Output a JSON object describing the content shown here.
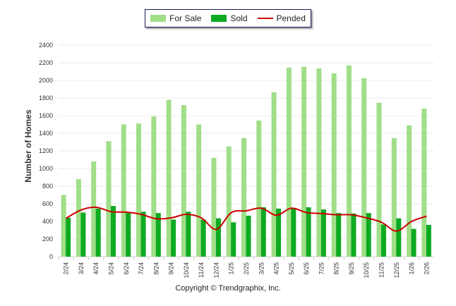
{
  "chart_data": {
    "type": "bar",
    "ylabel": "Number of Homes",
    "ylim": [
      0,
      2400
    ],
    "yticks": [
      0,
      200,
      400,
      600,
      800,
      1000,
      1200,
      1400,
      1600,
      1800,
      2000,
      2200,
      2400
    ],
    "grid": true,
    "legend_position": "top-center",
    "categories": [
      "2/24",
      "3/24",
      "4/24",
      "5/24",
      "6/24",
      "7/24",
      "8/24",
      "9/24",
      "10/24",
      "11/24",
      "12/24",
      "1/25",
      "2/25",
      "3/25",
      "4/25",
      "5/25",
      "6/25",
      "7/25",
      "8/25",
      "9/25",
      "10/25",
      "11/25",
      "12/25",
      "1/26",
      "2/26"
    ],
    "series": [
      {
        "name": "For Sale",
        "type": "bar",
        "color": "#a0de88",
        "values": [
          700,
          880,
          1080,
          1310,
          1500,
          1510,
          1590,
          1780,
          1720,
          1500,
          1120,
          1250,
          1345,
          1545,
          1865,
          2145,
          2155,
          2135,
          2080,
          2170,
          2025,
          1745,
          1345,
          1490,
          1680
        ]
      },
      {
        "name": "Sold",
        "type": "bar",
        "color": "#0daa22",
        "values": [
          440,
          500,
          545,
          575,
          495,
          510,
          495,
          420,
          510,
          420,
          435,
          390,
          465,
          560,
          545,
          545,
          560,
          535,
          495,
          490,
          495,
          365,
          435,
          315,
          360
        ]
      },
      {
        "name": "Pended",
        "type": "line",
        "color": "#cc0000",
        "values": [
          435,
          530,
          560,
          510,
          505,
          480,
          430,
          440,
          480,
          440,
          310,
          500,
          520,
          550,
          470,
          550,
          500,
          490,
          475,
          475,
          440,
          390,
          290,
          400,
          460
        ]
      }
    ]
  },
  "copyright": "Copyright © Trendgraphix, Inc."
}
